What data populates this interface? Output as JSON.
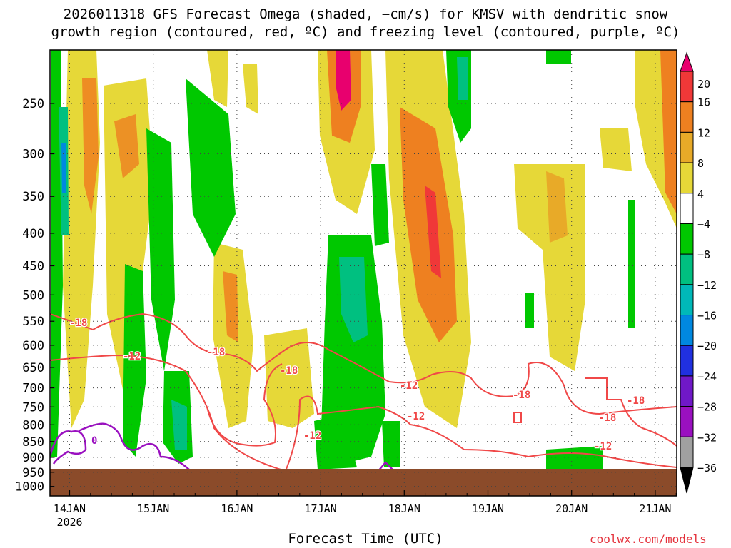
{
  "title_line1": "2026011318 GFS Forecast Omega (shaded, −cm/s) for KMSV with dendritic snow",
  "title_line2": "growth region (contoured, red, ºC) and freezing level (contoured, purple, ºC)",
  "credit": "coolwx.com/models",
  "chart_data": {
    "type": "heatmap",
    "title": "2026011318 GFS Forecast Omega (shaded, −cm/s) for KMSV with dendritic snow growth region (contoured, red, ºC) and freezing level (contoured, purple, ºC)",
    "xlabel": "Forecast Time (UTC)",
    "ylabel": "",
    "x_ticks": [
      "14JAN",
      "15JAN",
      "16JAN",
      "17JAN",
      "18JAN",
      "19JAN",
      "20JAN",
      "21JAN"
    ],
    "x_year": "2026",
    "y_ticks": [
      "250",
      "300",
      "350",
      "400",
      "450",
      "500",
      "550",
      "600",
      "650",
      "700",
      "750",
      "800",
      "850",
      "900",
      "950",
      "1000"
    ],
    "y_axis": "pressure level (hPa), reversed log scale",
    "colorbar_labels": [
      "20",
      "16",
      "12",
      "8",
      "4",
      "−4",
      "−8",
      "−12",
      "−16",
      "−20",
      "−24",
      "−28",
      "−32",
      "−36"
    ],
    "colorbar_colors": [
      "#e8006e",
      "#f03838",
      "#ee8020",
      "#e8aa28",
      "#e6d838",
      "#ffffff",
      "#00c800",
      "#00c080",
      "#00b8b8",
      "#0088e0",
      "#2030e0",
      "#7018c8",
      "#9a10c0",
      "#a0a0a0",
      "#000000"
    ],
    "contour_labels_red": [
      "-18",
      "-12"
    ],
    "contour_labels_purple": [
      "0"
    ],
    "terrain_color": "#8b4b2a",
    "grid": "dotted"
  }
}
